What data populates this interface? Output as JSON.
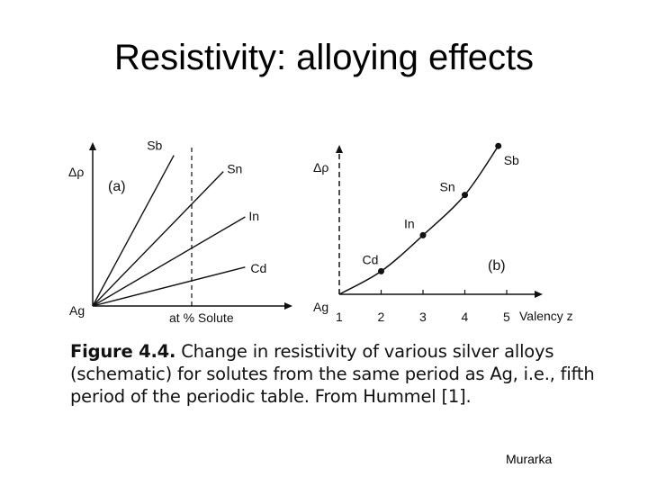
{
  "slide": {
    "title": "Resistivity: alloying effects",
    "caption_label": "Figure 4.4.",
    "caption_text": "Change in resistivity of various silver alloys (schematic) for solutes from the same period as Ag, i.e., fifth period of the periodic table. From Hummel [1].",
    "author": "Murarka"
  },
  "chart_data": [
    {
      "type": "line",
      "panel_label": "(a)",
      "ylabel": "Δρ",
      "xlabel": "at % Solute",
      "origin_label": "Ag",
      "note": "schematic",
      "xlim": [
        0,
        1
      ],
      "ylim": [
        0,
        1
      ],
      "series": [
        {
          "name": "Sb",
          "x": [
            0,
            0.41
          ],
          "y": [
            0,
            0.93
          ]
        },
        {
          "name": "Sn",
          "x": [
            0,
            0.66
          ],
          "y": [
            0,
            0.83
          ]
        },
        {
          "name": "In",
          "x": [
            0,
            0.77
          ],
          "y": [
            0,
            0.55
          ]
        },
        {
          "name": "Cd",
          "x": [
            0,
            0.77
          ],
          "y": [
            0,
            0.24
          ]
        }
      ],
      "reference_line_x": 0.5
    },
    {
      "type": "line",
      "panel_label": "(b)",
      "ylabel": "Δρ",
      "xlabel": "Valency z",
      "origin_label": "Ag",
      "xlim": [
        1,
        5.9
      ],
      "ylim": [
        0,
        1
      ],
      "x_ticks": [
        1,
        2,
        3,
        4,
        5
      ],
      "points": [
        {
          "name": "Cd",
          "x": 2,
          "y": 0.16
        },
        {
          "name": "In",
          "x": 3,
          "y": 0.41
        },
        {
          "name": "Sn",
          "x": 4,
          "y": 0.69
        },
        {
          "name": "Sb",
          "x": 4.8,
          "y": 1.03
        }
      ],
      "curve": {
        "x": [
          1,
          2,
          3,
          4,
          4.8
        ],
        "y": [
          0,
          0.16,
          0.41,
          0.69,
          1.03
        ]
      }
    }
  ]
}
